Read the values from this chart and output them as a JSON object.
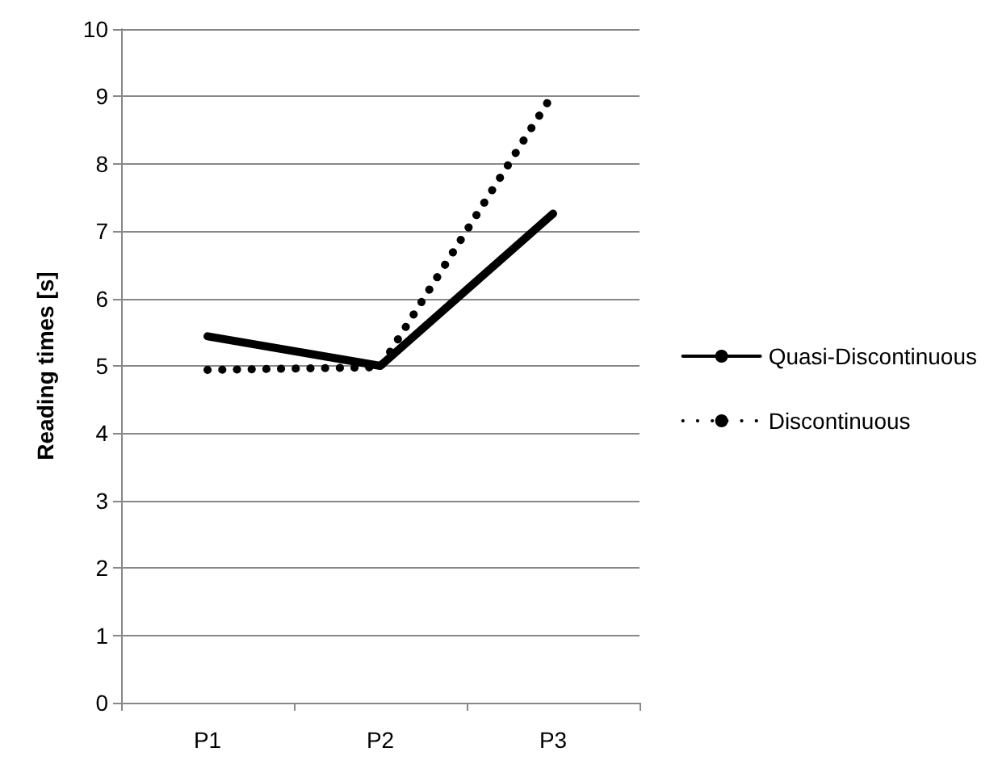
{
  "chart_data": {
    "type": "line",
    "ylabel": "Reading times [s]",
    "categories": [
      "P1",
      "P2",
      "P3"
    ],
    "series": [
      {
        "name": "Quasi-Discontinuous",
        "color": "#000000",
        "values": [
          5.44,
          5.0,
          7.26
        ],
        "line_style": "solid"
      },
      {
        "name": "Discontinuous",
        "color": "#000000",
        "values": [
          4.94,
          4.98,
          9.04
        ],
        "line_style": "dotted"
      }
    ],
    "ylim": [
      0,
      10
    ],
    "yticks": [
      0,
      1,
      2,
      3,
      4,
      5,
      6,
      7,
      8,
      9,
      10
    ],
    "grid": "y",
    "legend": "right",
    "marker": "none"
  }
}
